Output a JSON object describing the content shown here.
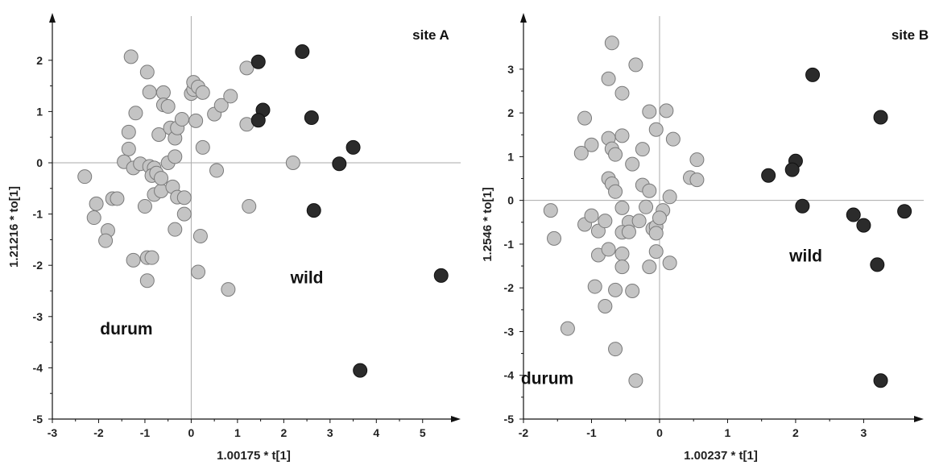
{
  "chart_data": [
    {
      "type": "scatter",
      "site_label": "site A",
      "xlabel": "1.00175 * t[1]",
      "ylabel": "1.21216 * to[1]",
      "xlim": [
        -3,
        5.7
      ],
      "ylim": [
        -5,
        2.5
      ],
      "xticks": [
        -3,
        -2,
        -1,
        0,
        1,
        2,
        3,
        4,
        5
      ],
      "yticks": [
        -5,
        -4,
        -3,
        -2,
        -1,
        0,
        1,
        2
      ],
      "annotations": [
        {
          "text": "wild",
          "x": 2.5,
          "y": -2.35
        },
        {
          "text": "durum",
          "x": -1.4,
          "y": -3.35
        }
      ],
      "grey_color": "#c4c4c4",
      "dark_color": "#2b2b2b",
      "grey_points": [
        [
          -2.3,
          -0.27
        ],
        [
          -2.05,
          -0.8
        ],
        [
          -2.1,
          -1.07
        ],
        [
          -1.8,
          -1.32
        ],
        [
          -1.85,
          -1.52
        ],
        [
          -1.7,
          -0.7
        ],
        [
          -1.6,
          -0.7
        ],
        [
          -1.3,
          2.07
        ],
        [
          -1.35,
          0.6
        ],
        [
          -1.35,
          0.27
        ],
        [
          -1.45,
          0.02
        ],
        [
          -1.2,
          0.97
        ],
        [
          -1.25,
          -0.1
        ],
        [
          -1.1,
          -0.02
        ],
        [
          -1.0,
          -0.85
        ],
        [
          -0.95,
          1.77
        ],
        [
          -0.9,
          1.38
        ],
        [
          -0.9,
          -0.07
        ],
        [
          -0.8,
          -0.1
        ],
        [
          -0.85,
          -0.25
        ],
        [
          -0.75,
          -0.2
        ],
        [
          -0.8,
          -0.62
        ],
        [
          -0.65,
          -0.55
        ],
        [
          -0.7,
          0.55
        ],
        [
          -0.65,
          -0.3
        ],
        [
          -0.6,
          1.37
        ],
        [
          -0.6,
          1.13
        ],
        [
          -0.5,
          1.1
        ],
        [
          -0.5,
          0.0
        ],
        [
          -0.45,
          0.68
        ],
        [
          -0.4,
          -0.47
        ],
        [
          -0.35,
          0.48
        ],
        [
          -0.35,
          0.12
        ],
        [
          -0.3,
          0.68
        ],
        [
          -0.35,
          -1.3
        ],
        [
          -0.3,
          -0.67
        ],
        [
          -0.2,
          0.85
        ],
        [
          -0.15,
          -0.68
        ],
        [
          -0.15,
          -1.0
        ],
        [
          -1.25,
          -1.9
        ],
        [
          -0.95,
          -1.85
        ],
        [
          -0.85,
          -1.85
        ],
        [
          -0.95,
          -2.3
        ],
        [
          0.0,
          1.35
        ],
        [
          0.05,
          1.43
        ],
        [
          0.05,
          1.57
        ],
        [
          0.15,
          1.48
        ],
        [
          0.25,
          1.37
        ],
        [
          0.1,
          0.82
        ],
        [
          0.25,
          0.3
        ],
        [
          0.2,
          -1.43
        ],
        [
          0.15,
          -2.13
        ],
        [
          0.5,
          0.95
        ],
        [
          0.55,
          -0.15
        ],
        [
          0.65,
          1.12
        ],
        [
          0.85,
          1.3
        ],
        [
          0.8,
          -2.47
        ],
        [
          1.2,
          1.85
        ],
        [
          1.2,
          0.75
        ],
        [
          1.25,
          -0.85
        ],
        [
          2.2,
          0.0
        ]
      ],
      "dark_points": [
        [
          1.45,
          1.97
        ],
        [
          2.4,
          2.17
        ],
        [
          1.55,
          1.03
        ],
        [
          1.45,
          0.83
        ],
        [
          2.6,
          0.88
        ],
        [
          3.5,
          0.3
        ],
        [
          3.2,
          -0.02
        ],
        [
          2.65,
          -0.93
        ],
        [
          5.4,
          -2.2
        ],
        [
          3.65,
          -4.05
        ]
      ]
    },
    {
      "type": "scatter",
      "site_label": "site B",
      "xlabel": "1.00237 * t[1]",
      "ylabel": "1.2546 * to[1]",
      "xlim": [
        -2,
        3.8
      ],
      "ylim": [
        -5,
        3.9
      ],
      "xticks": [
        -2,
        -1,
        0,
        1,
        2,
        3
      ],
      "yticks": [
        -5,
        -4,
        -3,
        -2,
        -1,
        0,
        1,
        2,
        3
      ],
      "annotations": [
        {
          "text": "wild",
          "x": 2.15,
          "y": -1.4
        },
        {
          "text": "durum",
          "x": -1.65,
          "y": -4.2
        }
      ],
      "grey_color": "#c4c4c4",
      "dark_color": "#2b2b2b",
      "grey_points": [
        [
          -0.7,
          3.6
        ],
        [
          -0.35,
          3.1
        ],
        [
          -0.75,
          2.78
        ],
        [
          -0.55,
          2.45
        ],
        [
          -0.15,
          2.03
        ],
        [
          0.1,
          2.05
        ],
        [
          -1.1,
          1.88
        ],
        [
          -0.05,
          1.62
        ],
        [
          0.2,
          1.4
        ],
        [
          -1.0,
          1.27
        ],
        [
          -1.15,
          1.08
        ],
        [
          -0.75,
          1.42
        ],
        [
          -0.55,
          1.48
        ],
        [
          -0.7,
          1.18
        ],
        [
          -0.65,
          1.05
        ],
        [
          -0.25,
          1.17
        ],
        [
          -0.4,
          0.83
        ],
        [
          0.55,
          0.93
        ],
        [
          -0.75,
          0.5
        ],
        [
          -0.7,
          0.38
        ],
        [
          -0.65,
          0.2
        ],
        [
          -0.25,
          0.35
        ],
        [
          -0.15,
          0.22
        ],
        [
          0.45,
          0.52
        ],
        [
          0.55,
          0.47
        ],
        [
          -1.6,
          -0.23
        ],
        [
          -1.1,
          -0.55
        ],
        [
          -1.0,
          -0.35
        ],
        [
          -0.9,
          -0.7
        ],
        [
          -0.8,
          -0.47
        ],
        [
          -0.55,
          -0.17
        ],
        [
          -0.45,
          -0.5
        ],
        [
          -0.3,
          -0.47
        ],
        [
          -0.2,
          -0.15
        ],
        [
          -0.1,
          -0.65
        ],
        [
          -0.05,
          -0.6
        ],
        [
          0.05,
          -0.23
        ],
        [
          0.15,
          0.08
        ],
        [
          0.0,
          -0.4
        ],
        [
          -0.05,
          -0.75
        ],
        [
          -0.55,
          -0.73
        ],
        [
          -0.45,
          -0.72
        ],
        [
          -1.55,
          -0.87
        ],
        [
          -0.9,
          -1.25
        ],
        [
          -0.75,
          -1.12
        ],
        [
          -0.55,
          -1.22
        ],
        [
          -0.55,
          -1.52
        ],
        [
          -0.15,
          -1.52
        ],
        [
          -0.05,
          -1.17
        ],
        [
          0.15,
          -1.43
        ],
        [
          -0.95,
          -1.97
        ],
        [
          -0.65,
          -2.05
        ],
        [
          -0.4,
          -2.07
        ],
        [
          -0.8,
          -2.42
        ],
        [
          -1.35,
          -2.93
        ],
        [
          -0.65,
          -3.4
        ],
        [
          -0.35,
          -4.12
        ]
      ],
      "dark_points": [
        [
          2.25,
          2.87
        ],
        [
          3.25,
          1.9
        ],
        [
          1.6,
          0.57
        ],
        [
          2.0,
          0.9
        ],
        [
          1.95,
          0.7
        ],
        [
          2.1,
          -0.13
        ],
        [
          2.85,
          -0.33
        ],
        [
          3.0,
          -0.57
        ],
        [
          3.6,
          -0.25
        ],
        [
          3.2,
          -1.47
        ],
        [
          3.25,
          -4.12
        ]
      ]
    }
  ]
}
